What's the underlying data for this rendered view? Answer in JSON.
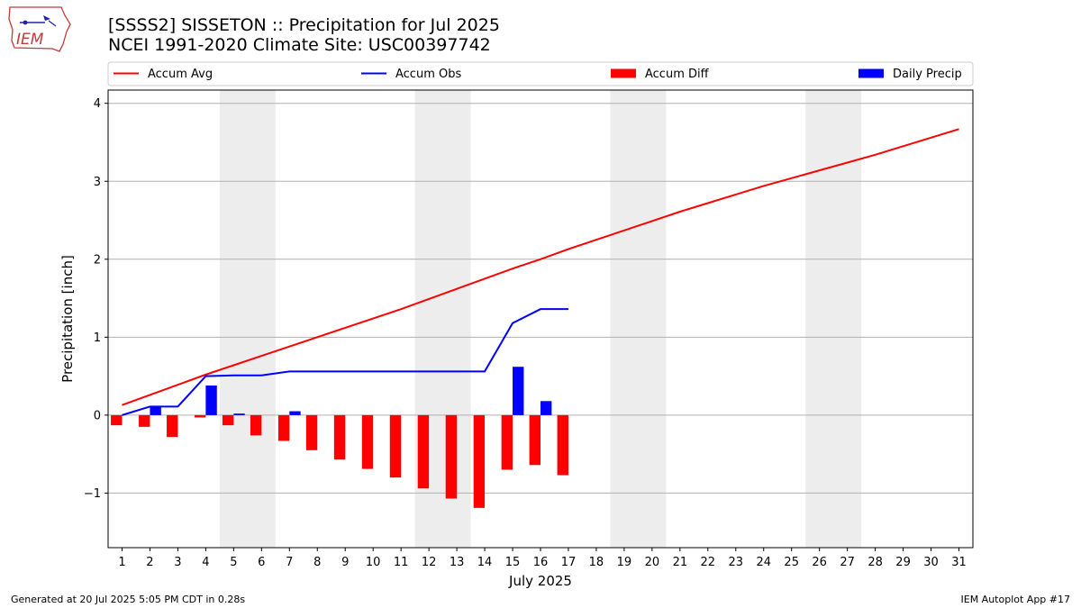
{
  "header": {
    "title_line1": "[SSSS2] SISSETON :: Precipitation for Jul 2025",
    "title_line2": "NCEI 1991-2020 Climate Site: USC00397742",
    "logo_text": "IEM"
  },
  "footer": {
    "generated": "Generated at 20 Jul 2025 5:05 PM CDT in 0.28s",
    "app": "IEM Autoplot App #17"
  },
  "colors": {
    "avg": "#ff0000",
    "obs": "#0000ff",
    "diff": "#ff0000",
    "daily": "#0000ff",
    "weekend": "#ededed",
    "grid": "#b0b0b0"
  },
  "chart_data": {
    "type": "bar",
    "xlabel": "July 2025",
    "ylabel": "Precipitation [inch]",
    "ylim": [
      -1.7,
      4.17
    ],
    "xlim": [
      0.5,
      31.5
    ],
    "y_ticks": [
      -1,
      0,
      1,
      2,
      3,
      4
    ],
    "y_tick_labels": [
      "−1",
      "0",
      "1",
      "2",
      "3",
      "4"
    ],
    "x_ticks": [
      1,
      2,
      3,
      4,
      5,
      6,
      7,
      8,
      9,
      10,
      11,
      12,
      13,
      14,
      15,
      16,
      17,
      18,
      19,
      20,
      21,
      22,
      23,
      24,
      25,
      26,
      27,
      28,
      29,
      30,
      31
    ],
    "grid": "horizontal",
    "legend_position": "top",
    "weekend_shading": [
      [
        5,
        6
      ],
      [
        12,
        13
      ],
      [
        19,
        20
      ],
      [
        26,
        27
      ]
    ],
    "series": [
      {
        "name": "Accum Avg",
        "kind": "line",
        "x": [
          1,
          2,
          3,
          4,
          5,
          6,
          7,
          8,
          9,
          10,
          11,
          12,
          13,
          14,
          15,
          16,
          17,
          18,
          19,
          20,
          21,
          22,
          23,
          24,
          25,
          26,
          27,
          28,
          29,
          30,
          31
        ],
        "values": [
          0.13,
          0.26,
          0.39,
          0.52,
          0.64,
          0.76,
          0.88,
          1.0,
          1.12,
          1.24,
          1.36,
          1.49,
          1.62,
          1.75,
          1.88,
          2.0,
          2.13,
          2.25,
          2.37,
          2.49,
          2.61,
          2.72,
          2.83,
          2.94,
          3.04,
          3.14,
          3.24,
          3.34,
          3.45,
          3.56,
          3.67
        ]
      },
      {
        "name": "Accum Obs",
        "kind": "line",
        "x": [
          1,
          2,
          3,
          4,
          5,
          6,
          7,
          8,
          9,
          10,
          11,
          12,
          13,
          14,
          15,
          16,
          17
        ],
        "values": [
          0.0,
          0.11,
          0.11,
          0.5,
          0.51,
          0.51,
          0.56,
          0.56,
          0.56,
          0.56,
          0.56,
          0.56,
          0.56,
          0.56,
          1.18,
          1.36,
          1.36
        ]
      },
      {
        "name": "Accum Diff",
        "kind": "bar",
        "x": [
          1,
          2,
          3,
          4,
          5,
          6,
          7,
          8,
          9,
          10,
          11,
          12,
          13,
          14,
          15,
          16,
          17
        ],
        "values": [
          -0.13,
          -0.15,
          -0.28,
          -0.03,
          -0.13,
          -0.26,
          -0.33,
          -0.45,
          -0.57,
          -0.69,
          -0.8,
          -0.94,
          -1.07,
          -1.19,
          -0.7,
          -0.64,
          -0.77
        ]
      },
      {
        "name": "Daily Precip",
        "kind": "bar",
        "x": [
          1,
          2,
          3,
          4,
          5,
          6,
          7,
          8,
          9,
          10,
          11,
          12,
          13,
          14,
          15,
          16,
          17
        ],
        "values": [
          0.0,
          0.11,
          0.0,
          0.38,
          0.02,
          0.0,
          0.05,
          0.0,
          0.0,
          0.0,
          0.0,
          0.0,
          0.0,
          0.0,
          0.62,
          0.18,
          0.0
        ]
      }
    ]
  }
}
